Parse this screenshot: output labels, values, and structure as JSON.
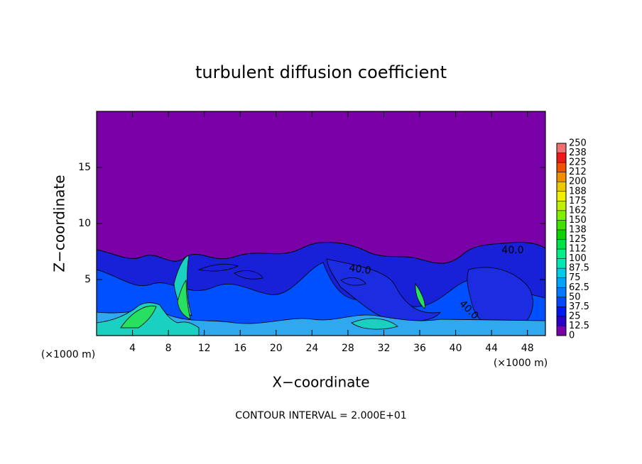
{
  "chart_data": {
    "type": "contour",
    "title": "turbulent diffusion coefficient",
    "x_label": "X−coordinate",
    "y_label": "Z−coordinate",
    "x_unit_label": "(×1000 m)",
    "x_unit_label_right": "(×1000 m)",
    "footnote": "CONTOUR INTERVAL = 2.000E+01",
    "xlim": [
      0,
      50
    ],
    "xticks": [
      4,
      8,
      12,
      16,
      20,
      24,
      28,
      32,
      36,
      40,
      44,
      48
    ],
    "ylim": [
      0,
      20
    ],
    "yticks": [
      5,
      10,
      15
    ],
    "contour_labels": [
      {
        "value": 40,
        "label": "40.0"
      },
      {
        "value": 40,
        "label": "40.0"
      },
      {
        "value": 40,
        "label": "40.0"
      }
    ],
    "colorbar": {
      "ticks": [
        0,
        12.5,
        25,
        37.5,
        50,
        62.5,
        75,
        87.5,
        100,
        {
          "value": 112.5,
          "label": "112"
        },
        125,
        {
          "value": 137.5,
          "label": "138"
        },
        150,
        {
          "value": 162.5,
          "label": "162"
        },
        175,
        {
          "value": 187.5,
          "label": "188"
        },
        200,
        {
          "value": 212.5,
          "label": "212"
        },
        225,
        {
          "value": 237.5,
          "label": "238"
        },
        250
      ],
      "colors": [
        "#7a00a8",
        "#2800c8",
        "#0018f0",
        "#0048ff",
        "#0078ff",
        "#00a4ff",
        "#00cce8",
        "#00e8b8",
        "#00f088",
        "#00e048",
        "#10d000",
        "#40e000",
        "#80f000",
        "#c0f000",
        "#f0f000",
        "#f0c800",
        "#f09000",
        "#f05000",
        "#f01818",
        "#f07070"
      ]
    }
  }
}
